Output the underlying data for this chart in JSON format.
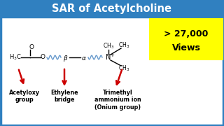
{
  "title": "SAR of Acetylcholine",
  "title_bg": "#3080C0",
  "title_color": "#FFFFFF",
  "bg_color": "#FFFFFF",
  "border_color": "#3080C0",
  "views_line1": "> 27,000",
  "views_line2": "Views",
  "views_bg": "#FFFF00",
  "label1": "Acetyloxy\ngroup",
  "label2": "Ethylene\nbridge",
  "label3": "Trimethyl\nammonium ion\n(Onium group)",
  "arrow_color": "#CC0000",
  "struct_color": "#000000",
  "wavy_color": "#6699CC"
}
